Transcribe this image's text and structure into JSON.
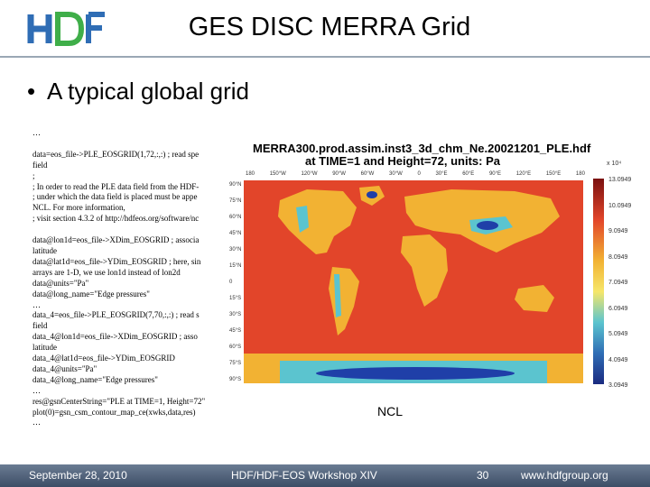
{
  "header": {
    "logo_text": "HDF",
    "title": "GES DISC MERRA Grid"
  },
  "bullet": {
    "text": "A typical global grid"
  },
  "code_lines": [
    "…",
    "",
    "data=eos_file->PLE_EOSGRID(1,72,:,:) ; read spe",
    "field",
    ";",
    "; In order to read the PLE data field from the HDF-",
    "; under which the data field is placed must be appe",
    "NCL. For more information,",
    "; visit section 4.3.2 of http://hdfeos.org/software/nc",
    "",
    "data@lon1d=eos_file->XDim_EOSGRID ; associa",
    "latitude",
    "data@lat1d=eos_file->YDim_EOSGRID ; here, sin",
    "arrays are 1-D, we use lon1d instead of lon2d",
    "data@units=\"Pa\"",
    "data@long_name=\"Edge pressures\"",
    "…",
    "data_4=eos_file->PLE_EOSGRID(7,70,:,:) ; read s",
    "field",
    "data_4@lon1d=eos_file->XDim_EOSGRID ; asso",
    "latitude",
    "data_4@lat1d=eos_file->YDim_EOSGRID",
    "data_4@units=\"Pa\"",
    "data_4@long_name=\"Edge pressures\"",
    "…",
    "res@gsnCenterString=\"PLE at TIME=1, Height=72\"",
    "plot(0)=gsn_csm_contour_map_ce(xwks,data,res)",
    "…"
  ],
  "figure": {
    "title_line1": "MERRA300.prod.assim.inst3_3d_chm_Ne.20021201_PLE.hdf",
    "title_line2": "at TIME=1 and Height=72, units: Pa",
    "lon_labels": [
      "180",
      "150°W",
      "120°W",
      "90°W",
      "60°W",
      "30°W",
      "0",
      "30°E",
      "60°E",
      "90°E",
      "120°E",
      "150°E",
      "180"
    ],
    "lat_labels": [
      "90°N",
      "75°N",
      "60°N",
      "45°N",
      "30°N",
      "15°N",
      "0",
      "15°S",
      "30°S",
      "45°S",
      "60°S",
      "75°S",
      "90°S"
    ],
    "colorbar_exponent": "x 10⁴",
    "colorbar_labels": [
      "13.0949",
      "10.0949",
      "9.0949",
      "8.0949",
      "7.0949",
      "6.0949",
      "5.0949",
      "4.0949",
      "3.0949"
    ],
    "colors": {
      "ocean": "#e2452a",
      "land_low": "#f2b233",
      "land_high": "#5bc4cf",
      "mountain": "#1f3fa8"
    }
  },
  "ncl_label": "NCL",
  "footer": {
    "date": "September 28, 2010",
    "event": "HDF/HDF-EOS Workshop XIV",
    "page": "30",
    "url": "www.hdfgroup.org"
  }
}
